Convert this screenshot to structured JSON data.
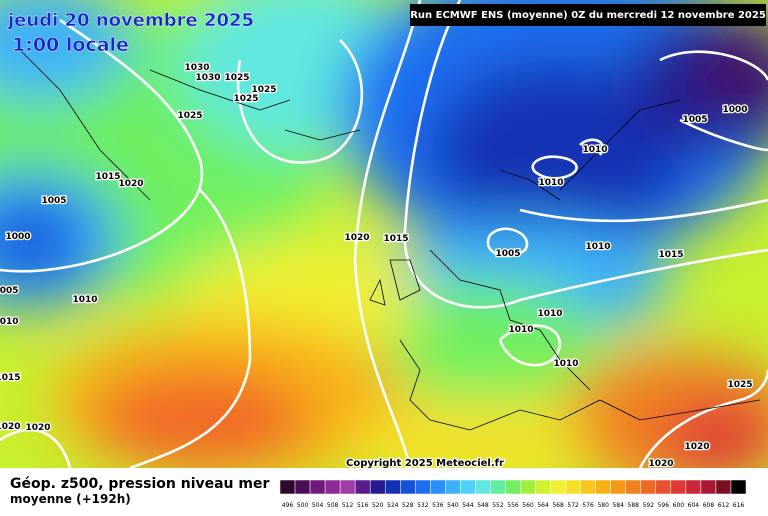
{
  "header": {
    "date": "jeudi 20 novembre 2025",
    "time": "1:00 locale",
    "run": "Run ECMWF ENS (moyenne) 0Z du mercredi 12 novembre 2025"
  },
  "isobar_labels": [
    1030,
    1030,
    1025,
    1025,
    1025,
    1025,
    1015,
    1020,
    1005,
    1000,
    1005,
    1010,
    1010,
    1015,
    1020,
    1020,
    1020,
    1015,
    1005,
    1010,
    1010,
    1010,
    1015,
    1005,
    1000,
    1010,
    1010,
    1010,
    1025,
    1020,
    1020
  ],
  "footer": {
    "title": "Géop. z500, pression niveau mer",
    "subtitle": "moyenne  (+192h)",
    "copyright": "Copyright 2025 Meteociel.fr"
  },
  "scale": {
    "labels": [
      496,
      500,
      504,
      508,
      512,
      516,
      520,
      524,
      528,
      532,
      536,
      540,
      544,
      548,
      552,
      556,
      560,
      564,
      568,
      572,
      576,
      580,
      584,
      588,
      592,
      596,
      600,
      604,
      608,
      612,
      616
    ],
    "colors": [
      "#2b0a2e",
      "#4b0f54",
      "#6e1a7a",
      "#8c2b96",
      "#a23ca8",
      "#5a1e8c",
      "#241c90",
      "#1430b4",
      "#1450d8",
      "#1e6ef0",
      "#2890f8",
      "#3cb0fa",
      "#50d0fc",
      "#60e8e0",
      "#60f0a0",
      "#70f060",
      "#a0f040",
      "#d0f030",
      "#f0f030",
      "#f8e028",
      "#f8c820",
      "#f8b018",
      "#f89818",
      "#f08020",
      "#f06828",
      "#e85030",
      "#e03838",
      "#c82838",
      "#a81830",
      "#781020",
      "#000000"
    ]
  }
}
